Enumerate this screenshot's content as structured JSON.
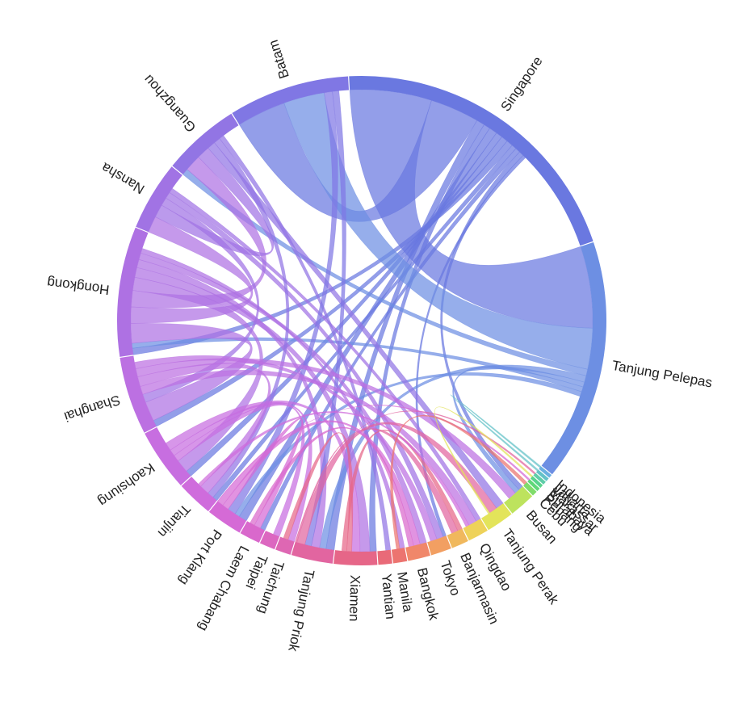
{
  "chart_data": {
    "type": "chord",
    "title": "",
    "nodes": [
      {
        "name": "Singapore",
        "value": 18,
        "color": "#6a78e0"
      },
      {
        "name": "Tanjung Pelepas",
        "value": 14,
        "color": "#6d8fe3"
      },
      {
        "name": "Indonesia",
        "value": 0.2,
        "color": "#6ab0e0"
      },
      {
        "name": "Jakarta",
        "value": 0.2,
        "color": "#63c2c8"
      },
      {
        "name": "Makassar",
        "value": 0.2,
        "color": "#5fcda8"
      },
      {
        "name": "Surabaya",
        "value": 0.2,
        "color": "#58d48c"
      },
      {
        "name": "Penang",
        "value": 0.2,
        "color": "#5ed878"
      },
      {
        "name": "Cebu",
        "value": 0.3,
        "color": "#7fdc6a"
      },
      {
        "name": "Busan",
        "value": 1.5,
        "color": "#bde35d"
      },
      {
        "name": "Tanjung Perak",
        "value": 1.6,
        "color": "#e3e45a"
      },
      {
        "name": "Qingdao",
        "value": 1.2,
        "color": "#eed25a"
      },
      {
        "name": "Banjarmasin",
        "value": 1.0,
        "color": "#f0b85d"
      },
      {
        "name": "Tokyo",
        "value": 1.2,
        "color": "#f29f62"
      },
      {
        "name": "Bangkok",
        "value": 1.3,
        "color": "#f0876a"
      },
      {
        "name": "Manila",
        "value": 0.8,
        "color": "#ec7470"
      },
      {
        "name": "Yantian",
        "value": 0.8,
        "color": "#e96a78"
      },
      {
        "name": "Xiamen",
        "value": 2.5,
        "color": "#e66688"
      },
      {
        "name": "Tanjung Priok",
        "value": 2.4,
        "color": "#e265a0"
      },
      {
        "name": "Taichung",
        "value": 0.9,
        "color": "#de67b3"
      },
      {
        "name": "Taipei",
        "value": 0.9,
        "color": "#dc67c0"
      },
      {
        "name": "Laem Chabang",
        "value": 1.2,
        "color": "#d968cc"
      },
      {
        "name": "Port Klang",
        "value": 2.1,
        "color": "#d56ad6"
      },
      {
        "name": "Tianjin",
        "value": 2.1,
        "color": "#cf6cdc"
      },
      {
        "name": "Kaohsiung",
        "value": 3.6,
        "color": "#c76ee0"
      },
      {
        "name": "Shanghai",
        "value": 4.5,
        "color": "#bc70e2"
      },
      {
        "name": "Hongkong",
        "value": 7.5,
        "color": "#ae71e3"
      },
      {
        "name": "Nansha",
        "value": 4.0,
        "color": "#a173e4"
      },
      {
        "name": "Guangzhou",
        "value": 4.5,
        "color": "#9275e4"
      },
      {
        "name": "Batam",
        "value": 7.0,
        "color": "#8077e4"
      }
    ],
    "links": [
      {
        "source": "Singapore",
        "target": "Tanjung Pelepas",
        "value": 5
      },
      {
        "source": "Singapore",
        "target": "Batam",
        "value": 3
      },
      {
        "source": "Singapore",
        "target": "Tanjung Priok",
        "value": 0.5
      },
      {
        "source": "Singapore",
        "target": "Xiamen",
        "value": 0.4
      },
      {
        "source": "Singapore",
        "target": "Port Klang",
        "value": 0.5
      },
      {
        "source": "Singapore",
        "target": "Kaohsiung",
        "value": 0.4
      },
      {
        "source": "Singapore",
        "target": "Shanghai",
        "value": 0.4
      },
      {
        "source": "Singapore",
        "target": "Hongkong",
        "value": 0.4
      },
      {
        "source": "Singapore",
        "target": "Tianjin",
        "value": 0.3
      },
      {
        "source": "Singapore",
        "target": "Laem Chabang",
        "value": 0.3
      },
      {
        "source": "Singapore",
        "target": "Busan",
        "value": 0.3
      },
      {
        "source": "Singapore",
        "target": "Tokyo",
        "value": 0.2
      },
      {
        "source": "Tanjung Pelepas",
        "target": "Batam",
        "value": 2.5
      },
      {
        "source": "Tanjung Pelepas",
        "target": "Guangzhou",
        "value": 0.4
      },
      {
        "source": "Tanjung Pelepas",
        "target": "Tanjung Priok",
        "value": 0.4
      },
      {
        "source": "Tanjung Pelepas",
        "target": "Busan",
        "value": 0.3
      },
      {
        "source": "Tanjung Pelepas",
        "target": "Hongkong",
        "value": 0.3
      },
      {
        "source": "Tanjung Pelepas",
        "target": "Port Klang",
        "value": 0.3
      },
      {
        "source": "Hongkong",
        "target": "Shanghai",
        "value": 1.2
      },
      {
        "source": "Hongkong",
        "target": "Nansha",
        "value": 1.0
      },
      {
        "source": "Hongkong",
        "target": "Guangzhou",
        "value": 1.0
      },
      {
        "source": "Hongkong",
        "target": "Kaohsiung",
        "value": 0.8
      },
      {
        "source": "Hongkong",
        "target": "Xiamen",
        "value": 0.6
      },
      {
        "source": "Hongkong",
        "target": "Tanjung Priok",
        "value": 0.5
      },
      {
        "source": "Hongkong",
        "target": "Bangkok",
        "value": 0.4
      },
      {
        "source": "Hongkong",
        "target": "Manila",
        "value": 0.3
      },
      {
        "source": "Nansha",
        "target": "Guangzhou",
        "value": 0.8
      },
      {
        "source": "Nansha",
        "target": "Shanghai",
        "value": 0.5
      },
      {
        "source": "Nansha",
        "target": "Tokyo",
        "value": 0.4
      },
      {
        "source": "Nansha",
        "target": "Qingdao",
        "value": 0.3
      },
      {
        "source": "Guangzhou",
        "target": "Tanjung Perak",
        "value": 0.5
      },
      {
        "source": "Guangzhou",
        "target": "Tianjin",
        "value": 0.4
      },
      {
        "source": "Guangzhou",
        "target": "Yantian",
        "value": 0.3
      },
      {
        "source": "Batam",
        "target": "Port Klang",
        "value": 0.5
      },
      {
        "source": "Batam",
        "target": "Tanjung Priok",
        "value": 0.4
      },
      {
        "source": "Kaohsiung",
        "target": "Taipei",
        "value": 0.4
      },
      {
        "source": "Kaohsiung",
        "target": "Taichung",
        "value": 0.4
      },
      {
        "source": "Kaohsiung",
        "target": "Xiamen",
        "value": 0.5
      },
      {
        "source": "Shanghai",
        "target": "Qingdao",
        "value": 0.5
      },
      {
        "source": "Shanghai",
        "target": "Tianjin",
        "value": 0.6
      },
      {
        "source": "Shanghai",
        "target": "Busan",
        "value": 0.5
      },
      {
        "source": "Shanghai",
        "target": "Tokyo",
        "value": 0.4
      },
      {
        "source": "Xiamen",
        "target": "Taichung",
        "value": 0.3
      },
      {
        "source": "Xiamen",
        "target": "Banjarmasin",
        "value": 0.3
      },
      {
        "source": "Tanjung Priok",
        "target": "Tanjung Perak",
        "value": 0.5
      },
      {
        "source": "Tanjung Priok",
        "target": "Banjarmasin",
        "value": 0.4
      },
      {
        "source": "Tanjung Priok",
        "target": "Makassar",
        "value": 0.1
      },
      {
        "source": "Port Klang",
        "target": "Laem Chabang",
        "value": 0.4
      },
      {
        "source": "Port Klang",
        "target": "Bangkok",
        "value": 0.4
      },
      {
        "source": "Port Klang",
        "target": "Penang",
        "value": 0.1
      },
      {
        "source": "Laem Chabang",
        "target": "Bangkok",
        "value": 0.3
      },
      {
        "source": "Tianjin",
        "target": "Qingdao",
        "value": 0.2
      },
      {
        "source": "Manila",
        "target": "Cebu",
        "value": 0.2
      },
      {
        "source": "Tanjung Perak",
        "target": "Surabaya",
        "value": 0.1
      },
      {
        "source": "Jakarta",
        "target": "Indonesia",
        "value": 0.1
      }
    ]
  }
}
